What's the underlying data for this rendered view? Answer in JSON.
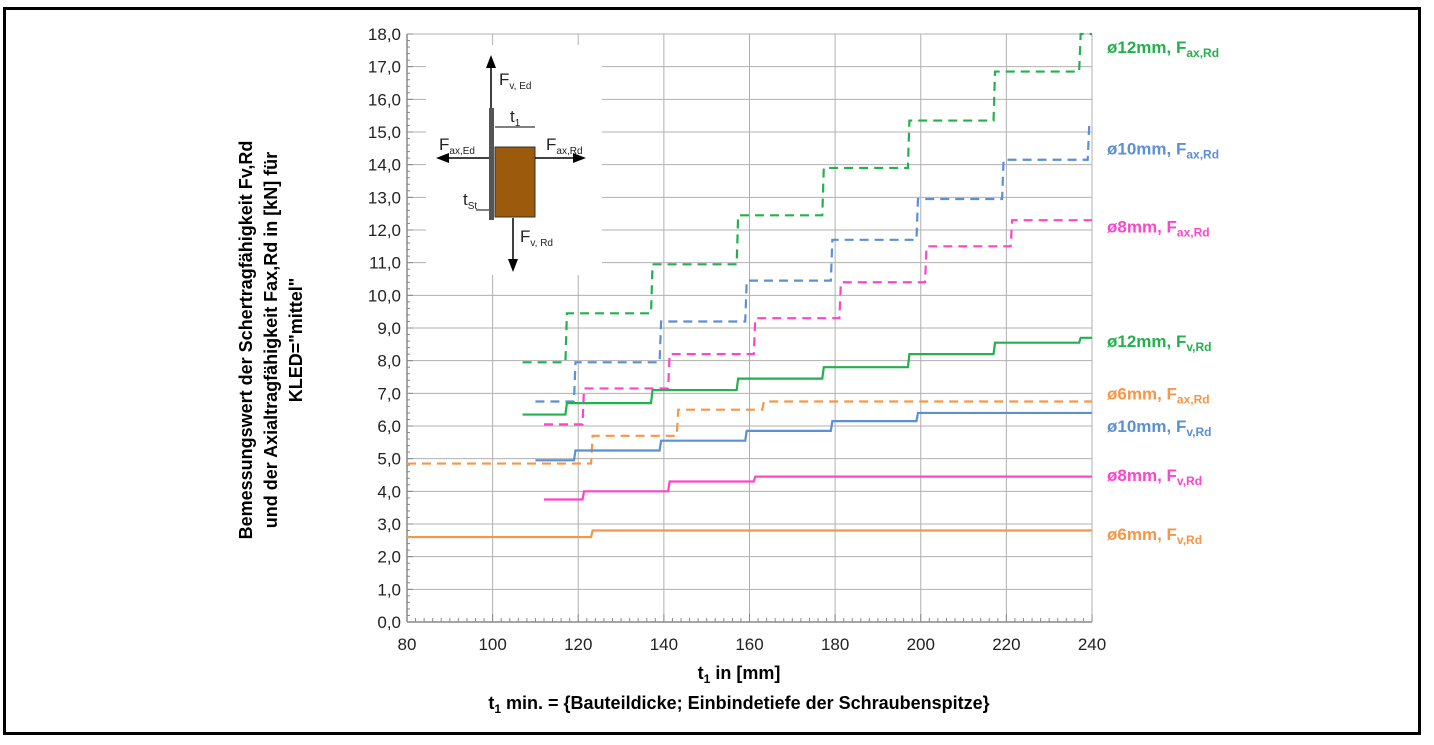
{
  "chart_data": {
    "type": "line",
    "xlabel_main": "t",
    "xlabel_sub": "1",
    "xlabel_rest": " in [mm]",
    "xnote_main": "t",
    "xnote_sub": "1",
    "xnote_rest": " min. = {Bauteildicke; Einbindetiefe der Schraubenspitze}",
    "ylabel_line1": "Bemessungswert der Schertragfähigkeit Fv,Rd",
    "ylabel_line2": "und der Axialtragfähigkeit Fax,Rd in [kN] für",
    "ylabel_line3": "KLED=\"mittel\"",
    "xlim": [
      80,
      240
    ],
    "ylim": [
      0,
      18
    ],
    "xticks": [
      "80",
      "100",
      "120",
      "140",
      "160",
      "180",
      "200",
      "220",
      "240"
    ],
    "yticks": [
      "0,0",
      "1,0",
      "2,0",
      "3,0",
      "4,0",
      "5,0",
      "6,0",
      "7,0",
      "8,0",
      "9,0",
      "10,0",
      "11,0",
      "12,0",
      "13,0",
      "14,0",
      "15,0",
      "16,0",
      "17,0",
      "18,0"
    ],
    "grid": true,
    "series": [
      {
        "id": "s12ax",
        "name": "ø12mm, ",
        "sub_f": "F",
        "sub_txt": "ax,Rd",
        "color": "#22b14c",
        "dash": true,
        "label_y": 17.6,
        "steps": [
          [
            107,
            7.95
          ],
          [
            117,
            9.45
          ],
          [
            137,
            10.95
          ],
          [
            157,
            12.45
          ],
          [
            177,
            13.9
          ],
          [
            197,
            15.35
          ],
          [
            217,
            16.85
          ],
          [
            237,
            18.3
          ]
        ],
        "end": 240
      },
      {
        "id": "s10ax",
        "name": "ø10mm, ",
        "sub_f": "F",
        "sub_txt": "ax,Rd",
        "color": "#5b8fd6",
        "dash": true,
        "label_y": 14.5,
        "steps": [
          [
            110,
            6.75
          ],
          [
            119,
            7.95
          ],
          [
            139,
            9.2
          ],
          [
            159,
            10.45
          ],
          [
            179,
            11.7
          ],
          [
            199,
            12.95
          ],
          [
            219,
            14.15
          ],
          [
            239,
            15.2
          ]
        ],
        "end": 240
      },
      {
        "id": "s8ax",
        "name": "ø8mm, ",
        "sub_f": "F",
        "sub_txt": "ax,Rd",
        "color": "#ff44cc",
        "dash": true,
        "label_y": 12.1,
        "steps": [
          [
            112,
            6.05
          ],
          [
            121,
            7.15
          ],
          [
            141,
            8.2
          ],
          [
            161,
            9.3
          ],
          [
            181,
            10.4
          ],
          [
            201,
            11.5
          ],
          [
            221,
            12.3
          ]
        ],
        "end": 240
      },
      {
        "id": "s6ax",
        "name": "ø6mm, ",
        "sub_f": "F",
        "sub_txt": "ax,Rd",
        "color": "#f79646",
        "dash": true,
        "label_y": 7.0,
        "steps": [
          [
            80,
            4.85
          ],
          [
            123,
            5.7
          ],
          [
            143,
            6.5
          ],
          [
            163,
            6.75
          ]
        ],
        "end": 240
      },
      {
        "id": "s12v",
        "name": "ø12mm, ",
        "sub_f": "F",
        "sub_txt": "v,Rd",
        "color": "#22b14c",
        "dash": false,
        "label_y": 8.6,
        "steps": [
          [
            107,
            6.35
          ],
          [
            117,
            6.7
          ],
          [
            137,
            7.1
          ],
          [
            157,
            7.45
          ],
          [
            177,
            7.8
          ],
          [
            197,
            8.2
          ],
          [
            217,
            8.55
          ],
          [
            237,
            8.7
          ]
        ],
        "end": 240
      },
      {
        "id": "s10v",
        "name": "ø10mm, ",
        "sub_f": "F",
        "sub_txt": "v,Rd",
        "color": "#5b8fd6",
        "dash": false,
        "label_y": 6.0,
        "steps": [
          [
            110,
            4.95
          ],
          [
            119,
            5.25
          ],
          [
            139,
            5.55
          ],
          [
            159,
            5.85
          ],
          [
            179,
            6.15
          ],
          [
            199,
            6.4
          ]
        ],
        "end": 240
      },
      {
        "id": "s8v",
        "name": "ø8mm, ",
        "sub_f": "F",
        "sub_txt": "v,Rd",
        "color": "#ff44cc",
        "dash": false,
        "label_y": 4.5,
        "steps": [
          [
            112,
            3.75
          ],
          [
            121,
            4.0
          ],
          [
            141,
            4.3
          ],
          [
            161,
            4.45
          ]
        ],
        "end": 240
      },
      {
        "id": "s6v",
        "name": "ø6mm, ",
        "sub_f": "F",
        "sub_txt": "v,Rd",
        "color": "#f79646",
        "dash": false,
        "label_y": 2.7,
        "steps": [
          [
            80,
            2.6
          ],
          [
            123,
            2.8
          ]
        ],
        "end": 240
      }
    ]
  },
  "inset": {
    "f_ved": "F",
    "f_ved_sub": "v, Ed",
    "f_vrd": "F",
    "f_vrd_sub": "v, Rd",
    "f_axed": "F",
    "f_axed_sub": "ax,Ed",
    "f_axrd": "F",
    "f_axrd_sub": "ax,Rd",
    "t1": "t",
    "t1_sub": "1",
    "tst": "t",
    "tst_sub": "St",
    "wood_color": "#9c5a0c"
  }
}
